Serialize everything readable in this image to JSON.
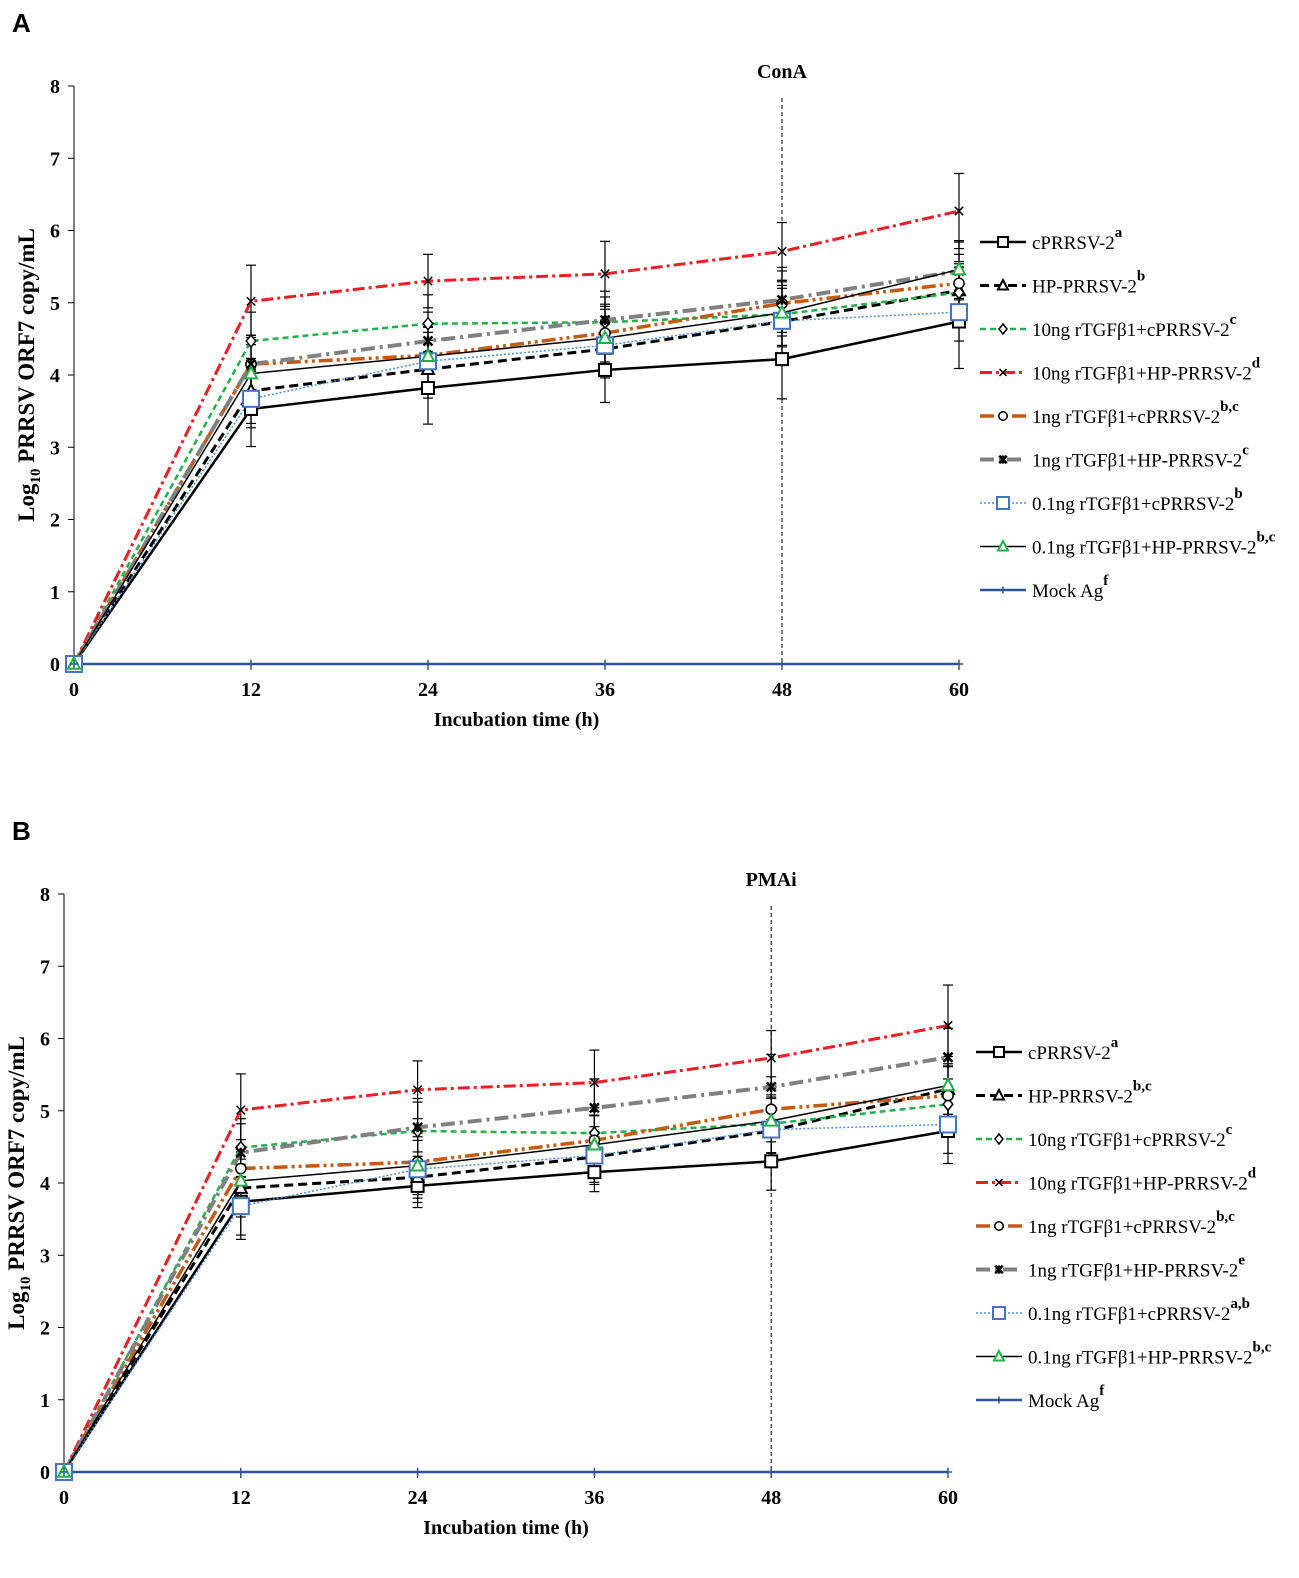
{
  "chart_data": [
    {
      "panel_label": "A",
      "type": "line",
      "annotation": "ConA",
      "annotation_x": 48,
      "xlabel": "Incubation time (h)",
      "ylabel_prefix": "Log",
      "ylabel_sub": "10",
      "ylabel_rest": " PRRSV ORF7 copy/mL",
      "x": [
        0,
        12,
        24,
        36,
        48,
        60
      ],
      "xlim": [
        0,
        60
      ],
      "ylim": [
        0,
        8
      ],
      "yticks": [
        0,
        1,
        2,
        3,
        4,
        5,
        6,
        7,
        8
      ],
      "legend_position": "right",
      "series": [
        {
          "name": "cPRRSV-2",
          "sup": "a",
          "color": "#000000",
          "dash": "",
          "width": 2.5,
          "marker": "square",
          "marker_color": "#000000",
          "values": [
            0,
            3.53,
            3.82,
            4.07,
            4.22,
            4.74
          ],
          "err": [
            0,
            0.52,
            0.5,
            0.45,
            0.55,
            0.65
          ]
        },
        {
          "name": "HP-PRRSV-2",
          "sup": "b",
          "color": "#000000",
          "dash": "9,5",
          "width": 3,
          "marker": "triangle",
          "marker_color": "#000000",
          "values": [
            0,
            3.78,
            4.08,
            4.36,
            4.74,
            5.17
          ],
          "err": [
            0,
            0.45,
            0.4,
            0.4,
            0.5,
            0.4
          ]
        },
        {
          "name": "10ng rTGFβ1+cPRRSV-2",
          "sup": "c",
          "color": "#22b04a",
          "dash": "6,4",
          "width": 2.5,
          "marker": "diamond",
          "marker_color": "#000000",
          "values": [
            0,
            4.47,
            4.71,
            4.73,
            4.84,
            5.14
          ],
          "err": [
            0,
            0.4,
            0.4,
            0.35,
            0.45,
            0.4
          ]
        },
        {
          "name": "10ng rTGFβ1+HP-PRRSV-2",
          "sup": "d",
          "color": "#ea2026",
          "dash": "12,4,3,4",
          "width": 3,
          "marker": "x",
          "marker_color": "#000000",
          "values": [
            0,
            5.02,
            5.3,
            5.4,
            5.71,
            6.27
          ],
          "err": [
            0,
            0.5,
            0.37,
            0.45,
            0.4,
            0.52
          ]
        },
        {
          "name": "1ng rTGFβ1+cPRRSV-2",
          "sup": "b,c",
          "color": "#c55a11",
          "dash": "14,4,3,4,3,4",
          "width": 3.5,
          "marker": "circle",
          "marker_color": "#000000",
          "values": [
            0,
            4.15,
            4.27,
            4.58,
            4.99,
            5.27
          ],
          "err": [
            0,
            0.4,
            0.4,
            0.4,
            0.45,
            0.4
          ]
        },
        {
          "name": "1ng rTGFβ1+HP-PRRSV-2",
          "sup": "c",
          "color": "#808080",
          "dash": "14,5,3,5",
          "width": 4,
          "marker": "asterisk",
          "marker_color": "#000000",
          "values": [
            0,
            4.15,
            4.47,
            4.76,
            5.04,
            5.44
          ],
          "err": [
            0,
            0.4,
            0.4,
            0.4,
            0.45,
            0.4
          ]
        },
        {
          "name": "0.1ng rTGFβ1+cPRRSV-2",
          "sup": "b",
          "color": "#4a90d9",
          "dash": "2,2",
          "width": 1.5,
          "marker": "square",
          "marker_color": "#4472c4",
          "values": [
            0,
            3.67,
            4.19,
            4.41,
            4.75,
            4.87
          ],
          "err": [
            0,
            0.4,
            0.4,
            0.4,
            0.45,
            0.4
          ]
        },
        {
          "name": "0.1ng rTGFβ1+HP-PRRSV-2",
          "sup": "b,c",
          "color": "#000000",
          "dash": "",
          "width": 1.5,
          "marker": "triangle",
          "marker_color": "#22b04a",
          "values": [
            0,
            4.02,
            4.26,
            4.51,
            4.86,
            5.46
          ],
          "err": [
            0,
            0.4,
            0.4,
            0.4,
            0.45,
            0.4
          ]
        },
        {
          "name": "Mock Ag",
          "sup": "f",
          "color": "#2f5597",
          "dash": "",
          "width": 2.5,
          "marker": "plus",
          "marker_color": "#2f5597",
          "values": [
            0,
            0,
            0,
            0,
            0,
            0
          ],
          "err": [
            0,
            0,
            0,
            0,
            0,
            0
          ]
        }
      ]
    },
    {
      "panel_label": "B",
      "type": "line",
      "annotation": "PMAi",
      "annotation_x": 48,
      "xlabel": "Incubation time (h)",
      "ylabel_prefix": "Log",
      "ylabel_sub": "10",
      "ylabel_rest": " PRRSV ORF7 copy/mL",
      "x": [
        0,
        12,
        24,
        36,
        48,
        60
      ],
      "xlim": [
        0,
        60
      ],
      "ylim": [
        0,
        8
      ],
      "yticks": [
        0,
        1,
        2,
        3,
        4,
        5,
        6,
        7,
        8
      ],
      "legend_position": "right",
      "series": [
        {
          "name": "cPRRSV-2",
          "sup": "a",
          "color": "#000000",
          "dash": "",
          "width": 2.5,
          "marker": "square",
          "marker_color": "#000000",
          "values": [
            0,
            3.74,
            3.96,
            4.15,
            4.3,
            4.72
          ],
          "err": [
            0,
            0.52,
            0.3,
            0.27,
            0.4,
            0.45
          ]
        },
        {
          "name": "HP-PRRSV-2",
          "sup": "b,c",
          "color": "#000000",
          "dash": "9,5",
          "width": 3,
          "marker": "triangle",
          "marker_color": "#000000",
          "values": [
            0,
            3.93,
            4.08,
            4.36,
            4.72,
            5.3
          ],
          "err": [
            0,
            0.4,
            0.35,
            0.35,
            0.45,
            0.35
          ]
        },
        {
          "name": "10ng rTGFβ1+cPRRSV-2",
          "sup": "c",
          "color": "#22b04a",
          "dash": "6,4",
          "width": 2.5,
          "marker": "diamond",
          "marker_color": "#000000",
          "values": [
            0,
            4.49,
            4.72,
            4.69,
            4.82,
            5.09
          ],
          "err": [
            0,
            0.4,
            0.4,
            0.35,
            0.4,
            0.35
          ]
        },
        {
          "name": "10ng rTGFβ1+HP-PRRSV-2",
          "sup": "d",
          "color": "#ea2026",
          "dash": "12,4,3,4",
          "width": 3,
          "marker": "x",
          "marker_color": "#000000",
          "values": [
            0,
            5.01,
            5.29,
            5.39,
            5.73,
            6.18
          ],
          "err": [
            0,
            0.5,
            0.4,
            0.45,
            0.38,
            0.56
          ]
        },
        {
          "name": "1ng rTGFβ1+cPRRSV-2",
          "sup": "b,c",
          "color": "#c55a11",
          "dash": "14,4,3,4,3,4",
          "width": 3.5,
          "marker": "circle",
          "marker_color": "#000000",
          "values": [
            0,
            4.2,
            4.29,
            4.59,
            5.02,
            5.21
          ],
          "err": [
            0,
            0.4,
            0.4,
            0.4,
            0.45,
            0.4
          ]
        },
        {
          "name": "1ng rTGFβ1+HP-PRRSV-2",
          "sup": "e",
          "color": "#808080",
          "dash": "14,5,3,5",
          "width": 4,
          "marker": "asterisk",
          "marker_color": "#000000",
          "values": [
            0,
            4.42,
            4.77,
            5.04,
            5.33,
            5.74
          ],
          "err": [
            0,
            0.4,
            0.4,
            0.4,
            0.45,
            0.4
          ]
        },
        {
          "name": "0.1ng rTGFβ1+cPRRSV-2",
          "sup": "a,b",
          "color": "#4a90d9",
          "dash": "2,2",
          "width": 1.5,
          "marker": "square",
          "marker_color": "#4472c4",
          "values": [
            0,
            3.68,
            4.19,
            4.38,
            4.74,
            4.81
          ],
          "err": [
            0,
            0.4,
            0.4,
            0.4,
            0.45,
            0.4
          ]
        },
        {
          "name": "0.1ng rTGFβ1+HP-PRRSV-2",
          "sup": "b,c",
          "color": "#000000",
          "dash": "",
          "width": 1.5,
          "marker": "triangle",
          "marker_color": "#22b04a",
          "values": [
            0,
            4.03,
            4.24,
            4.53,
            4.86,
            5.35
          ],
          "err": [
            0,
            0.4,
            0.4,
            0.4,
            0.45,
            0.4
          ]
        },
        {
          "name": "Mock Ag",
          "sup": "f",
          "color": "#2f5597",
          "dash": "",
          "width": 2.5,
          "marker": "plus",
          "marker_color": "#2f5597",
          "values": [
            0,
            0,
            0,
            0,
            0,
            0
          ],
          "err": [
            0,
            0,
            0,
            0,
            0,
            0
          ]
        }
      ]
    }
  ]
}
